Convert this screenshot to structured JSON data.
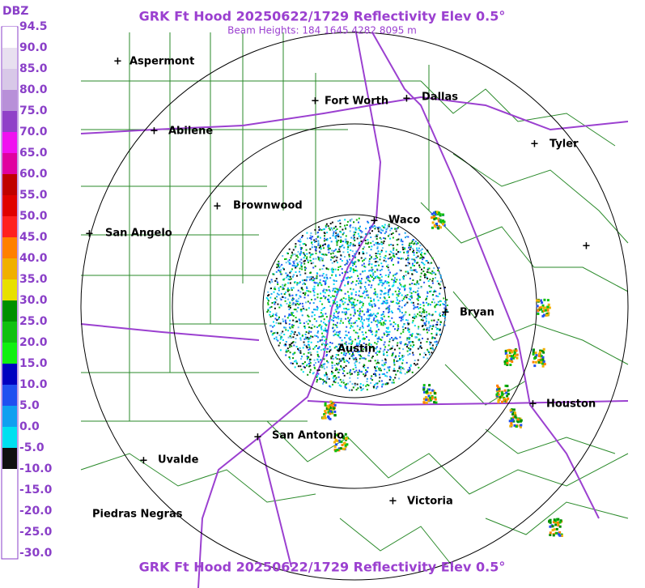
{
  "header": {
    "title": "GRK Ft Hood 20250622/1729 Reflectivity Elev 0.5°",
    "subtitle": "Beam Heights: 184 1645 4282 8095 m",
    "footer": "GRK Ft Hood 20250622/1729 Reflectivity Elev 0.5°"
  },
  "legend": {
    "unit": "DBZ",
    "labels": [
      "94.5",
      "90.0",
      "85.0",
      "80.0",
      "75.0",
      "70.0",
      "65.0",
      "60.0",
      "55.0",
      "50.0",
      "45.0",
      "40.0",
      "35.0",
      "30.0",
      "25.0",
      "20.0",
      "15.0",
      "10.0",
      "5.0",
      "0.0",
      "-5.0",
      "-10.0",
      "-15.0",
      "-20.0",
      "-25.0",
      "-30.0"
    ]
  },
  "cities": [
    "Aspermont",
    "Fort Worth",
    "Dallas",
    "Abilene",
    "Tyler",
    "Brownwood",
    "Waco",
    "San Angelo",
    "Bryan",
    "Austin",
    "Houston",
    "San Antonio",
    "Uvalde",
    "Victoria",
    "Piedras Negras"
  ]
}
